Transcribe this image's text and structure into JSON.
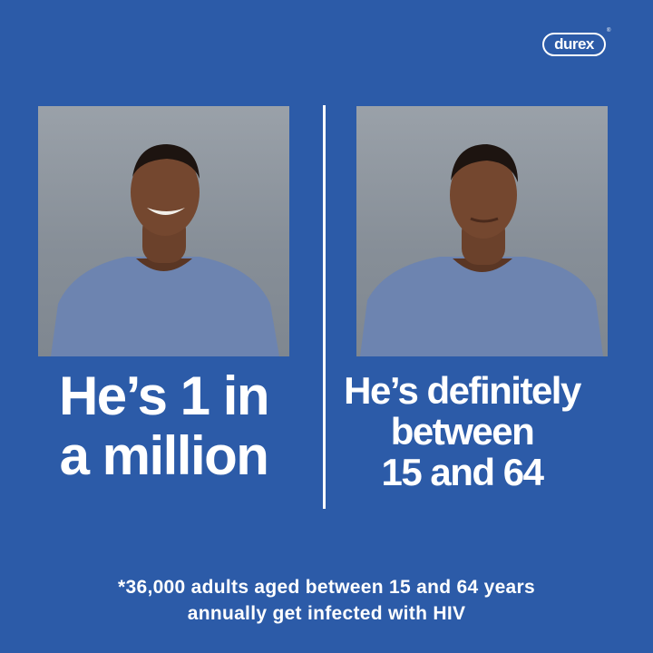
{
  "brand": {
    "logo": "durex",
    "registered": "®"
  },
  "left_panel": {
    "headline": [
      "He’s 1 in",
      "a million"
    ]
  },
  "right_panel": {
    "headline": [
      "He’s definitely",
      "between",
      "15 and 64"
    ]
  },
  "footnote": [
    "*36,000 adults aged between 15 and 64 years",
    "annually get infected with HIV"
  ],
  "colors": {
    "background": "#2c5ba8",
    "text": "#ffffff",
    "photo_backdrop": "#8c939b",
    "shirt": "#6d84b0"
  }
}
